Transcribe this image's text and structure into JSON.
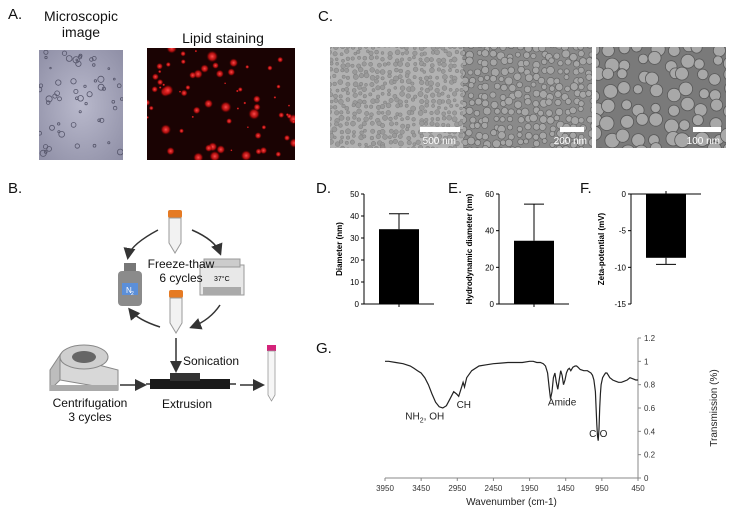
{
  "panels": {
    "a": {
      "letter": "A.",
      "micro_title_line1": "Microscopic",
      "micro_title_line2": "image",
      "lipid_title": "Lipid staining"
    },
    "b": {
      "letter": "B.",
      "freeze_line1": "Freeze-thaw",
      "freeze_line2": "6 cycles",
      "bath_temp": "37°C",
      "n2_label": "N",
      "n2_sub": "2",
      "sonication": "Sonication",
      "extrusion": "Extrusion",
      "centrifugation_line1": "Centrifugation",
      "centrifugation_line2": "3 cycles"
    },
    "c": {
      "letter": "C.",
      "scale_bars": [
        "500 nm",
        "200 nm",
        "100 nm"
      ]
    },
    "d": {
      "letter": "D."
    },
    "e": {
      "letter": "E."
    },
    "f": {
      "letter": "F."
    },
    "g": {
      "letter": "G."
    }
  },
  "chart_data": [
    {
      "id": "D",
      "type": "bar",
      "ylabel": "Diameter (nm)",
      "ylim": [
        0,
        50
      ],
      "yticks": [
        0,
        10,
        20,
        30,
        40,
        50
      ],
      "values": [
        34
      ],
      "error": [
        7
      ],
      "bar_color": "#000000"
    },
    {
      "id": "E",
      "type": "bar",
      "ylabel": "Hydrodynamic diameter (nm)",
      "ylim": [
        0,
        60
      ],
      "yticks": [
        0,
        20,
        40,
        60
      ],
      "values": [
        34.5
      ],
      "error": [
        20
      ],
      "bar_color": "#000000"
    },
    {
      "id": "F",
      "type": "bar",
      "ylabel": "Zeta-potential (mV)",
      "ylim": [
        -15,
        0
      ],
      "yticks": [
        0,
        -5,
        -10,
        -15
      ],
      "values": [
        -8.7
      ],
      "error": [
        0.9
      ],
      "bar_color": "#000000"
    },
    {
      "id": "G",
      "type": "line",
      "xlabel": "Wavenumber (cm-1)",
      "ylabel": "Transmission (%)",
      "xlim": [
        3950,
        450
      ],
      "xticks": [
        3950,
        3450,
        2950,
        2450,
        1950,
        1450,
        950,
        450
      ],
      "ylim": [
        0,
        1.2
      ],
      "yticks": [
        0,
        0.2,
        0.4,
        0.6,
        0.8,
        1,
        1.2
      ],
      "annotations": [
        {
          "text": "NH",
          "sub": "2",
          "tail": ", OH",
          "x": 3400,
          "y": 0.5
        },
        {
          "text": "CH",
          "x": 2860,
          "y": 0.6
        },
        {
          "text": "Amide",
          "x": 1500,
          "y": 0.62
        },
        {
          "text": "C-O",
          "x": 1000,
          "y": 0.35
        }
      ],
      "x": [
        3950,
        3900,
        3800,
        3700,
        3600,
        3550,
        3500,
        3450,
        3400,
        3350,
        3300,
        3250,
        3200,
        3150,
        3100,
        3050,
        3000,
        2960,
        2930,
        2900,
        2870,
        2850,
        2820,
        2750,
        2650,
        2550,
        2450,
        2350,
        2250,
        2150,
        2050,
        1950,
        1900,
        1850,
        1800,
        1760,
        1730,
        1700,
        1680,
        1660,
        1640,
        1620,
        1600,
        1580,
        1560,
        1540,
        1520,
        1500,
        1480,
        1460,
        1440,
        1420,
        1400,
        1380,
        1350,
        1320,
        1300,
        1280,
        1250,
        1200,
        1150,
        1100,
        1080,
        1060,
        1040,
        1030,
        1020,
        1010,
        1000,
        990,
        980,
        970,
        960,
        940,
        920,
        900,
        880,
        860,
        840,
        820,
        800,
        760,
        720,
        680,
        640,
        600,
        560,
        520,
        480,
        450
      ],
      "y": [
        1.0,
        1.0,
        0.99,
        0.98,
        0.96,
        0.94,
        0.92,
        0.9,
        0.86,
        0.8,
        0.72,
        0.65,
        0.61,
        0.6,
        0.62,
        0.68,
        0.74,
        0.72,
        0.7,
        0.76,
        0.82,
        0.78,
        0.86,
        0.92,
        0.96,
        0.97,
        0.98,
        0.985,
        0.99,
        0.99,
        0.99,
        1.0,
        1.0,
        0.99,
        0.99,
        0.98,
        0.96,
        0.9,
        0.78,
        0.68,
        0.74,
        0.86,
        0.9,
        0.82,
        0.76,
        0.84,
        0.92,
        0.88,
        0.8,
        0.84,
        0.9,
        0.93,
        0.94,
        0.92,
        0.95,
        0.96,
        0.96,
        0.95,
        0.93,
        0.92,
        0.92,
        0.9,
        0.88,
        0.84,
        0.74,
        0.6,
        0.46,
        0.36,
        0.32,
        0.42,
        0.6,
        0.72,
        0.8,
        0.86,
        0.88,
        0.9,
        0.9,
        0.88,
        0.86,
        0.85,
        0.84,
        0.83,
        0.82,
        0.82,
        0.83,
        0.84,
        0.86,
        0.85,
        0.84,
        0.84
      ]
    }
  ]
}
